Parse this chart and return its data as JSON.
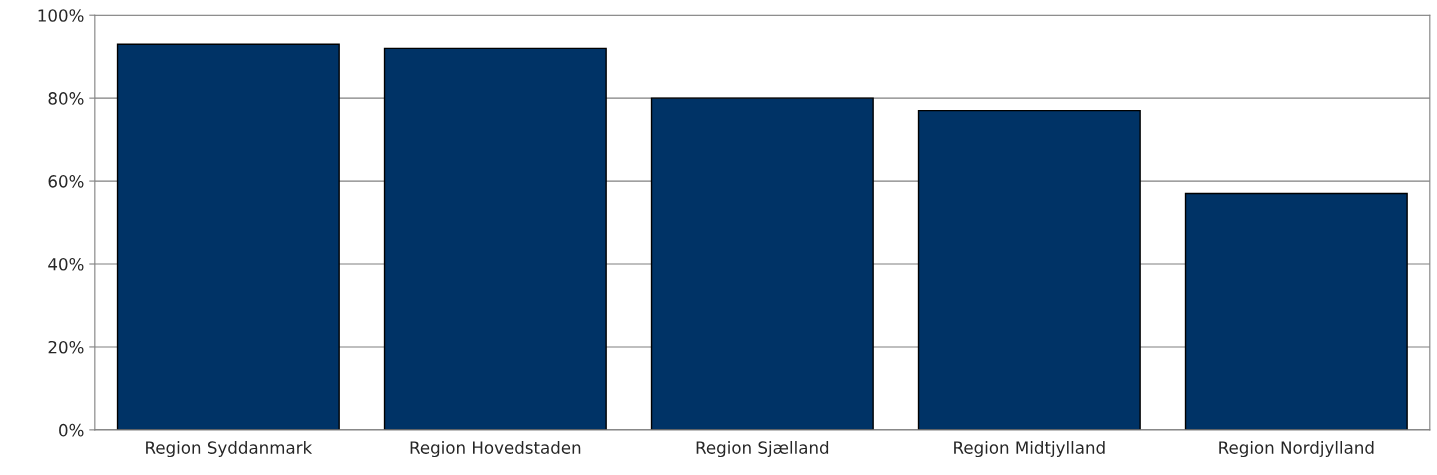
{
  "chart_data": {
    "type": "bar",
    "categories": [
      "Region Syddanmark",
      "Region Hovedstaden",
      "Region Sjælland",
      "Region Midtjylland",
      "Region Nordjylland"
    ],
    "values": [
      93,
      92,
      80,
      77,
      57
    ],
    "color": "#003366",
    "ylim": [
      0,
      100
    ],
    "yticks": [
      {
        "value": 0,
        "label": "0%"
      },
      {
        "value": 20,
        "label": "20%"
      },
      {
        "value": 40,
        "label": "40%"
      },
      {
        "value": 60,
        "label": "60%"
      },
      {
        "value": 80,
        "label": "80%"
      },
      {
        "value": 100,
        "label": "100%"
      }
    ],
    "grid": "y"
  }
}
